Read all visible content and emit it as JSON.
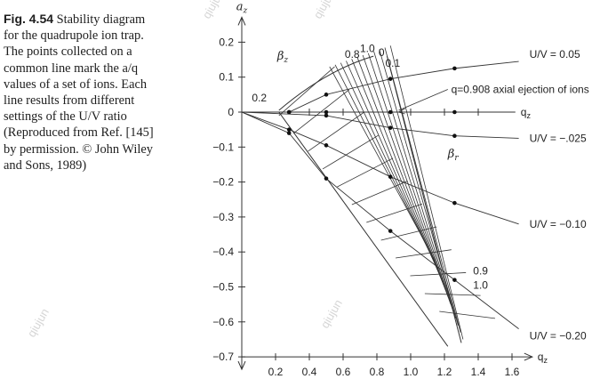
{
  "caption": {
    "label": "Fig. 4.54",
    "lines": [
      "Stability diagram",
      "for the quadrupole ion trap.",
      "The points collected on a",
      "common line mark the a/q",
      "values of a set of ions. Each",
      "line results from different",
      "settings of the U/V ratio",
      "(Reproduced from Ref. [145]",
      "by permission. © John Wiley",
      "and Sons, 1989)"
    ],
    "ref_text": "[145]"
  },
  "watermark": "qiujun",
  "chart_data": {
    "type": "diagram",
    "x_axis": {
      "label": "qz",
      "range": [
        0,
        1.7
      ],
      "ticks": [
        0.2,
        0.4,
        0.6,
        0.8,
        1.0,
        1.2,
        1.4,
        1.6
      ],
      "tick_labels": [
        "0.2",
        "0.4",
        "0.6",
        "0.8",
        "1.0",
        "1.2",
        "1.4",
        "1.6"
      ]
    },
    "y_axis": {
      "label": "az",
      "range": [
        -0.7,
        0.2
      ],
      "ticks": [
        0.2,
        0.1,
        0,
        -0.1,
        -0.2,
        -0.3,
        -0.4,
        -0.5,
        -0.6,
        -0.7
      ],
      "tick_labels": [
        "0.2",
        "0.1",
        "0",
        "−0.1",
        "−0.2",
        "−0.3",
        "−0.4",
        "−0.5",
        "−0.6",
        "−0.7"
      ]
    },
    "region_labels": {
      "beta_z": "βz",
      "beta_r": "βr"
    },
    "beta_z_values": [
      "0.1",
      "0.2",
      "0.8",
      "1.0",
      "0"
    ],
    "beta_r_values": [
      "0.9",
      "1.0"
    ],
    "scan_lines": [
      {
        "label": "U/V = 0.05",
        "points": [
          [
            0.28,
            0.0
          ],
          [
            0.5,
            0.05
          ],
          [
            0.88,
            0.095
          ],
          [
            1.26,
            0.125
          ]
        ],
        "end": [
          1.64,
          0.145
        ]
      },
      {
        "label": "U/V = −.025",
        "points": [
          [
            0.5,
            -0.01
          ],
          [
            0.88,
            -0.045
          ],
          [
            1.26,
            -0.068
          ]
        ],
        "end": [
          1.64,
          -0.075
        ]
      },
      {
        "label": "U/V = −0.10",
        "points": [
          [
            0.28,
            -0.05
          ],
          [
            0.5,
            -0.095
          ],
          [
            0.88,
            -0.185
          ],
          [
            1.26,
            -0.26
          ]
        ],
        "end": [
          1.64,
          -0.32
        ]
      },
      {
        "label": "U/V = −0.20",
        "points": [
          [
            0.28,
            -0.06
          ],
          [
            0.5,
            -0.19
          ],
          [
            0.88,
            -0.34
          ],
          [
            1.26,
            -0.48
          ]
        ],
        "end": [
          1.64,
          -0.62
        ]
      }
    ],
    "axial_points": [
      0.28,
      0.5,
      0.88,
      1.26
    ],
    "annotation": "q=0.908 axial ejection of ions",
    "annotation_q": 0.908
  }
}
